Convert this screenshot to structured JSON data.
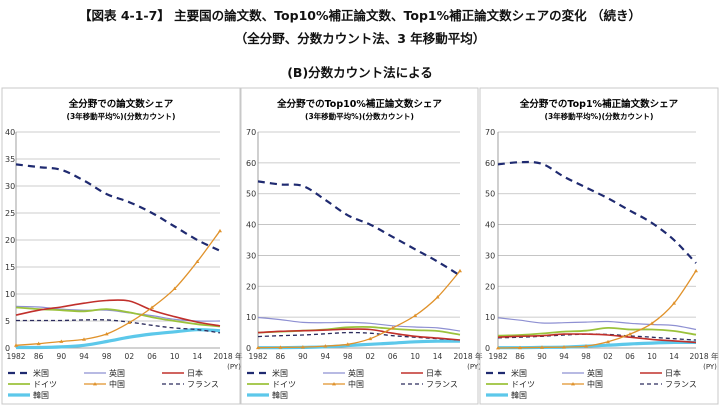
{
  "header": {
    "title": "【図表 4-1-7】 主要国の論文数、Top10%補正論文数、Top1%補正論文数シェアの変化 （続き）",
    "subtitle": "（全分野、分数カウント法、3 年移動平均）",
    "section": "(B)分数カウント法による"
  },
  "colors": {
    "米国": "#1f2a70",
    "英国": "#8e90d2",
    "日本": "#c1302b",
    "ドイツ": "#9bc23c",
    "中国": "#e0922b",
    "フランス": "#2b2b5c",
    "韓国": "#5cc8ea"
  },
  "chart_data": [
    {
      "type": "line",
      "title": "全分野での論文数シェア",
      "subtitle": "(3年移動平均%)(分数カウント)",
      "x": [
        1982,
        1986,
        1990,
        1994,
        1998,
        2002,
        2006,
        2010,
        2014,
        2018
      ],
      "xtick_labels": [
        "1982",
        "86",
        "90",
        "94",
        "98",
        "02",
        "06",
        "10",
        "14",
        "2018 年"
      ],
      "xunit": "(PY)",
      "ylim": [
        0,
        40
      ],
      "yticks": [
        0,
        5,
        10,
        15,
        20,
        25,
        30,
        35,
        40
      ],
      "grid": true,
      "legend": "bottom",
      "series": [
        {
          "name": "米国",
          "values": [
            34,
            33.5,
            33,
            31,
            28.5,
            27,
            25,
            22.5,
            20,
            18
          ]
        },
        {
          "name": "英国",
          "values": [
            7.7,
            7.6,
            7.2,
            7.0,
            7.0,
            6.5,
            6.0,
            5.3,
            5.0,
            5.0
          ]
        },
        {
          "name": "日本",
          "values": [
            6.1,
            7.0,
            7.6,
            8.3,
            8.8,
            8.7,
            7.0,
            5.8,
            4.8,
            4.1
          ]
        },
        {
          "name": "ドイツ",
          "values": [
            7.5,
            7.2,
            7.0,
            6.8,
            7.2,
            6.6,
            5.7,
            5.0,
            4.4,
            4.0
          ]
        },
        {
          "name": "中国",
          "values": [
            0.5,
            0.8,
            1.2,
            1.6,
            2.6,
            4.7,
            7.5,
            11,
            16,
            21.7
          ]
        },
        {
          "name": "フランス",
          "values": [
            5.1,
            5.1,
            5.1,
            5.2,
            5.2,
            4.8,
            4.2,
            3.7,
            3.4,
            2.8
          ]
        },
        {
          "name": "韓国",
          "values": [
            0.1,
            0.1,
            0.2,
            0.5,
            1.2,
            2.0,
            2.6,
            3.0,
            3.4,
            3.2
          ]
        }
      ]
    },
    {
      "type": "line",
      "title": "全分野でのTop10%補正論文数シェア",
      "subtitle": "(3年移動平均%)(分数カウント)",
      "x": [
        1982,
        1986,
        1990,
        1994,
        1998,
        2002,
        2006,
        2010,
        2014,
        2018
      ],
      "xtick_labels": [
        "1982",
        "86",
        "90",
        "94",
        "98",
        "02",
        "06",
        "10",
        "14",
        "2018 年"
      ],
      "xunit": "(PY)",
      "ylim": [
        0,
        70
      ],
      "yticks": [
        0,
        10,
        20,
        30,
        40,
        50,
        60,
        70
      ],
      "grid": true,
      "legend": "bottom",
      "series": [
        {
          "name": "米国",
          "values": [
            54,
            53,
            52.5,
            48,
            43,
            40,
            36,
            32,
            28,
            23.5
          ]
        },
        {
          "name": "英国",
          "values": [
            9.9,
            9.2,
            8.3,
            8.2,
            8.3,
            8.0,
            7.2,
            6.8,
            6.5,
            5.5
          ]
        },
        {
          "name": "日本",
          "values": [
            5.0,
            5.4,
            5.6,
            5.8,
            6.1,
            6.0,
            4.8,
            3.8,
            3.2,
            2.6
          ]
        },
        {
          "name": "ドイツ",
          "values": [
            5.0,
            5.3,
            5.6,
            6.0,
            6.7,
            6.8,
            6.2,
            5.8,
            5.5,
            4.3
          ]
        },
        {
          "name": "中国",
          "values": [
            0.1,
            0.2,
            0.3,
            0.6,
            1.2,
            3,
            6.5,
            10.5,
            16.5,
            25
          ]
        },
        {
          "name": "フランス",
          "values": [
            3.7,
            4.0,
            4.2,
            4.6,
            5.0,
            4.8,
            4.0,
            3.5,
            3.0,
            2.6
          ]
        },
        {
          "name": "韓国",
          "values": [
            0.1,
            0.1,
            0.2,
            0.4,
            0.8,
            1.2,
            1.6,
            2.0,
            2.2,
            2.2
          ]
        }
      ]
    },
    {
      "type": "line",
      "title": "全分野でのTop1%補正論文数シェア",
      "subtitle": "(3年移動平均%)(分数カウント)",
      "x": [
        1982,
        1986,
        1990,
        1994,
        1998,
        2002,
        2006,
        2010,
        2014,
        2018
      ],
      "xtick_labels": [
        "1982",
        "86",
        "90",
        "94",
        "98",
        "02",
        "06",
        "10",
        "14",
        "2018 年"
      ],
      "xunit": "(PY)",
      "ylim": [
        0,
        70
      ],
      "yticks": [
        0,
        10,
        20,
        30,
        40,
        50,
        60,
        70
      ],
      "grid": true,
      "legend": "bottom",
      "series": [
        {
          "name": "米国",
          "values": [
            59.5,
            60.2,
            59.7,
            55.5,
            52,
            48.5,
            44.5,
            40.5,
            35,
            27.5
          ]
        },
        {
          "name": "英国",
          "values": [
            9.8,
            9.0,
            8.1,
            8.2,
            8.4,
            8.6,
            8.0,
            7.6,
            7.3,
            6.0
          ]
        },
        {
          "name": "日本",
          "values": [
            3.5,
            3.8,
            4.0,
            4.5,
            4.5,
            4.2,
            3.5,
            2.8,
            2.3,
            1.8
          ]
        },
        {
          "name": "ドイツ",
          "values": [
            4.0,
            4.2,
            4.7,
            5.3,
            5.6,
            6.5,
            6.0,
            6.0,
            5.5,
            4.3
          ]
        },
        {
          "name": "中国",
          "values": [
            0,
            0.1,
            0.2,
            0.3,
            0.6,
            2,
            4.5,
            8,
            14.5,
            25
          ]
        },
        {
          "name": "フランス",
          "values": [
            3.3,
            3.5,
            3.8,
            4.2,
            4.5,
            4.4,
            3.9,
            3.5,
            3.0,
            2.6
          ]
        },
        {
          "name": "韓国",
          "values": [
            0.1,
            0.1,
            0.2,
            0.3,
            0.6,
            0.9,
            1.3,
            1.6,
            1.8,
            1.8
          ]
        }
      ]
    }
  ]
}
